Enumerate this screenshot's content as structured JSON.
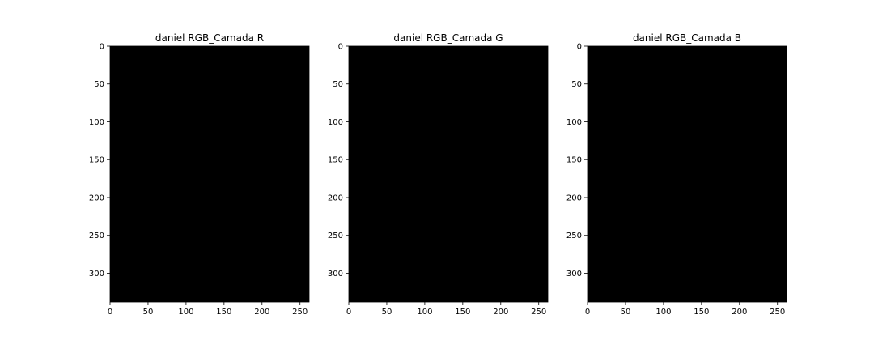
{
  "panels": [
    {
      "title": "daniel RGB_Camada R",
      "channel": "R",
      "color": "#ff0000"
    },
    {
      "title": "daniel RGB_Camada G",
      "channel": "G",
      "color": "#1fb39a"
    },
    {
      "title": "daniel RGB_Camada B",
      "channel": "B",
      "color": "#1010ff"
    }
  ],
  "axes": {
    "x_ticks": [
      "0",
      "50",
      "100",
      "150",
      "200",
      "250"
    ],
    "y_ticks": [
      "0",
      "50",
      "100",
      "150",
      "200",
      "250",
      "300"
    ],
    "x_range": [
      0,
      262
    ],
    "y_range": [
      0,
      338
    ]
  },
  "icons": [
    "person-portrait-icon"
  ]
}
